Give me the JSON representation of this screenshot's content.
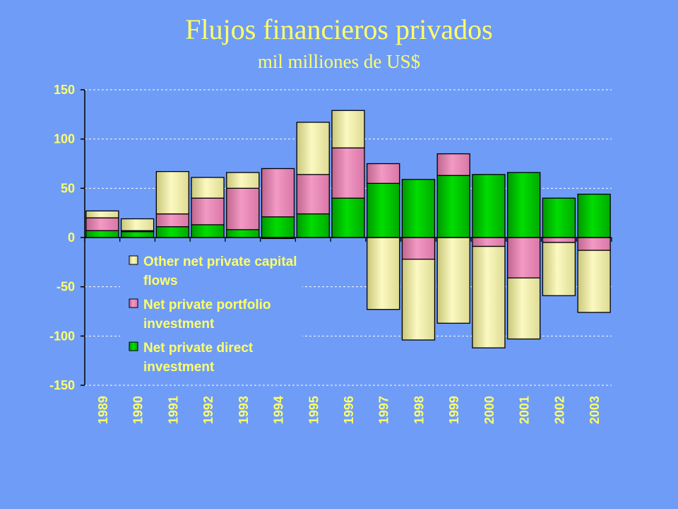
{
  "chart_data": {
    "type": "bar",
    "stacked": true,
    "title": "Flujos financieros privados",
    "subtitle": "mil milliones de US$",
    "categories": [
      "1989",
      "1990",
      "1991",
      "1992",
      "1993",
      "1994",
      "1995",
      "1996",
      "1997",
      "1998",
      "1999",
      "2000",
      "2001",
      "2002",
      "2003"
    ],
    "ylim": [
      -150,
      150
    ],
    "yticks": [
      "150",
      "100",
      "50",
      "0",
      "-50",
      "-100",
      "-150"
    ],
    "grid": true,
    "legend_position": "lower-left inside plot",
    "series": [
      {
        "name": "Net private direct investment",
        "color": "#00cc00",
        "values": [
          7,
          6,
          11,
          13,
          8,
          21,
          24,
          40,
          55,
          59,
          63,
          64,
          66,
          40,
          44
        ]
      },
      {
        "name": "Net private portfolio investment",
        "color": "#ee88bb",
        "values": [
          13,
          1,
          13,
          27,
          42,
          49,
          40,
          51,
          20,
          -22,
          22,
          -9,
          -41,
          -5,
          -13
        ]
      },
      {
        "name": "Other net private capital flows",
        "color": "#f2f0a0",
        "values": [
          7,
          12,
          43,
          21,
          16,
          -1,
          53,
          38,
          -73,
          -82,
          -87,
          -103,
          -62,
          -54,
          -63
        ]
      }
    ],
    "legend": [
      {
        "lines": [
          "Other net private capital",
          "flows"
        ],
        "color": "#f2f0a0"
      },
      {
        "lines": [
          "Net private portfolio",
          "investment"
        ],
        "color": "#ee88bb"
      },
      {
        "lines": [
          "Net private direct",
          "investment"
        ],
        "color": "#00cc00"
      }
    ]
  }
}
